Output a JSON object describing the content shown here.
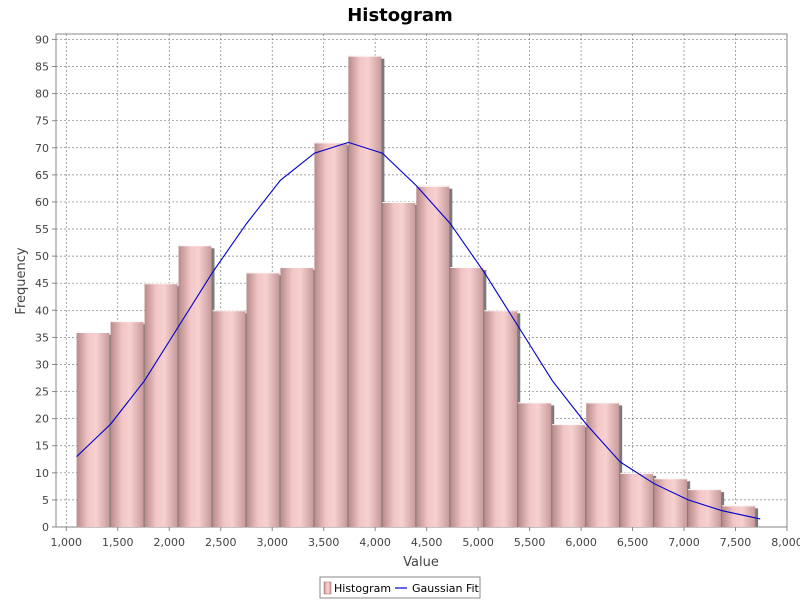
{
  "chart_data": {
    "type": "bar",
    "title": "Histogram",
    "xlabel": "Value",
    "ylabel": "Frequency",
    "xlim": [
      900,
      8000
    ],
    "ylim": [
      0,
      91
    ],
    "x_ticks": [
      1000,
      1500,
      2000,
      2500,
      3000,
      3500,
      4000,
      4500,
      5000,
      5500,
      6000,
      6500,
      7000,
      7500,
      8000
    ],
    "x_tick_labels": [
      "1,000",
      "1,500",
      "2,000",
      "2,500",
      "3,000",
      "3,500",
      "4,000",
      "4,500",
      "5,000",
      "5,500",
      "6,000",
      "6,500",
      "7,000",
      "7,500",
      "8,000"
    ],
    "y_ticks": [
      0,
      5,
      10,
      15,
      20,
      25,
      30,
      35,
      40,
      45,
      50,
      55,
      60,
      65,
      70,
      75,
      80,
      85,
      90
    ],
    "grid": true,
    "legend_position": "bottom-center",
    "series": [
      {
        "name": "Histogram",
        "type": "bar",
        "color": "#f4b6b6",
        "bins": [
          {
            "x0": 1100,
            "x1": 1430,
            "value": 36
          },
          {
            "x0": 1430,
            "x1": 1760,
            "value": 38
          },
          {
            "x0": 1760,
            "x1": 2090,
            "value": 45
          },
          {
            "x0": 2090,
            "x1": 2420,
            "value": 52
          },
          {
            "x0": 2420,
            "x1": 2750,
            "value": 40
          },
          {
            "x0": 2750,
            "x1": 3080,
            "value": 47
          },
          {
            "x0": 3080,
            "x1": 3410,
            "value": 48
          },
          {
            "x0": 3410,
            "x1": 3740,
            "value": 71
          },
          {
            "x0": 3740,
            "x1": 4070,
            "value": 87
          },
          {
            "x0": 4070,
            "x1": 4400,
            "value": 60
          },
          {
            "x0": 4400,
            "x1": 4730,
            "value": 63
          },
          {
            "x0": 4730,
            "x1": 5060,
            "value": 48
          },
          {
            "x0": 5060,
            "x1": 5390,
            "value": 40
          },
          {
            "x0": 5390,
            "x1": 5720,
            "value": 23
          },
          {
            "x0": 5720,
            "x1": 6050,
            "value": 19
          },
          {
            "x0": 6050,
            "x1": 6380,
            "value": 23
          },
          {
            "x0": 6380,
            "x1": 6710,
            "value": 10
          },
          {
            "x0": 6710,
            "x1": 7040,
            "value": 9
          },
          {
            "x0": 7040,
            "x1": 7370,
            "value": 7
          },
          {
            "x0": 7370,
            "x1": 7700,
            "value": 4
          }
        ]
      },
      {
        "name": "Gaussian Fit",
        "type": "line",
        "color": "#0000cc",
        "x": [
          1100,
          1430,
          1760,
          2090,
          2420,
          2750,
          3080,
          3410,
          3740,
          4070,
          4400,
          4730,
          5060,
          5390,
          5720,
          6050,
          6380,
          6710,
          7040,
          7370,
          7740
        ],
        "y": [
          13,
          19,
          27,
          37,
          47,
          56,
          64,
          69,
          71,
          69,
          63,
          56,
          47,
          37,
          27,
          19,
          12,
          8,
          5,
          3,
          1.5
        ]
      }
    ]
  }
}
